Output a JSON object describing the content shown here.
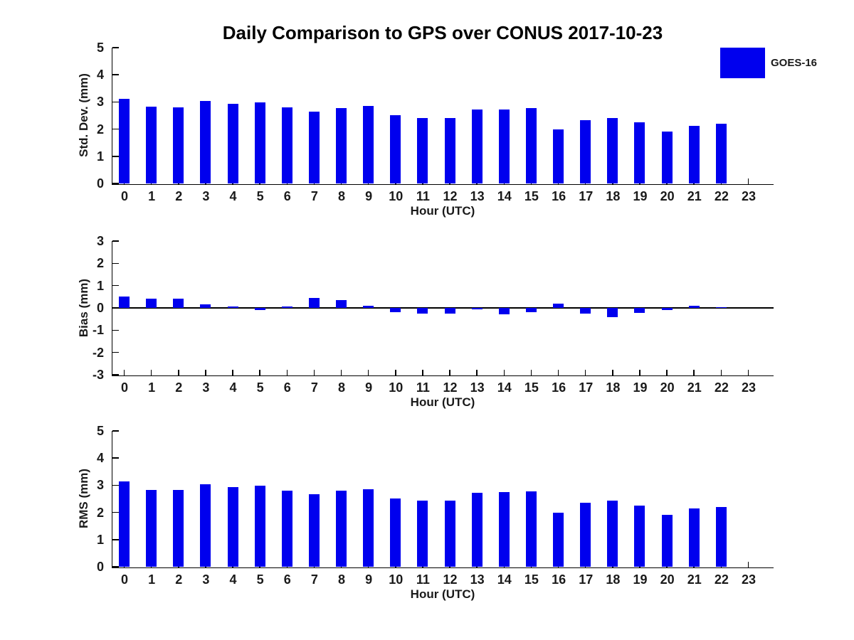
{
  "title": "Daily Comparison to GPS over CONUS 2017-10-23",
  "legend": {
    "label": "GOES-16",
    "position": "top-right"
  },
  "colors": {
    "bar": "#0000EE",
    "axis": "#000000",
    "text": "#1A1A1A"
  },
  "chart_data": [
    {
      "type": "bar",
      "panel": "std-dev",
      "series_name": "GOES-16",
      "ylabel": "Std. Dev. (mm)",
      "xlabel": "Hour (UTC)",
      "categories": [
        0,
        1,
        2,
        3,
        4,
        5,
        6,
        7,
        8,
        9,
        10,
        11,
        12,
        13,
        14,
        15,
        16,
        17,
        18,
        19,
        20,
        21,
        22,
        23
      ],
      "values": [
        3.11,
        2.83,
        2.8,
        3.03,
        2.93,
        2.98,
        2.8,
        2.64,
        2.77,
        2.85,
        2.51,
        2.42,
        2.42,
        2.73,
        2.73,
        2.77,
        1.98,
        2.34,
        2.4,
        2.24,
        1.91,
        2.13,
        2.19,
        null
      ],
      "ylim": [
        0,
        5
      ],
      "yticks": [
        0,
        1,
        2,
        3,
        4,
        5
      ],
      "grid": false
    },
    {
      "type": "bar",
      "panel": "bias",
      "series_name": "GOES-16",
      "ylabel": "Bias (mm)",
      "xlabel": "Hour (UTC)",
      "categories": [
        0,
        1,
        2,
        3,
        4,
        5,
        6,
        7,
        8,
        9,
        10,
        11,
        12,
        13,
        14,
        15,
        16,
        17,
        18,
        19,
        20,
        21,
        22,
        23
      ],
      "values": [
        0.51,
        0.43,
        0.4,
        0.17,
        0.06,
        -0.11,
        0.05,
        0.46,
        0.36,
        0.11,
        -0.2,
        -0.26,
        -0.25,
        -0.07,
        -0.29,
        -0.18,
        0.19,
        -0.24,
        -0.43,
        -0.21,
        -0.08,
        0.11,
        0.04,
        null
      ],
      "ylim": [
        -3,
        3
      ],
      "yticks": [
        -3,
        -2,
        -1,
        0,
        1,
        2,
        3
      ],
      "grid": false
    },
    {
      "type": "bar",
      "panel": "rms",
      "series_name": "GOES-16",
      "ylabel": "RMS (mm)",
      "xlabel": "Hour (UTC)",
      "categories": [
        0,
        1,
        2,
        3,
        4,
        5,
        6,
        7,
        8,
        9,
        10,
        11,
        12,
        13,
        14,
        15,
        16,
        17,
        18,
        19,
        20,
        21,
        22,
        23
      ],
      "values": [
        3.15,
        2.84,
        2.82,
        3.03,
        2.93,
        2.98,
        2.8,
        2.68,
        2.79,
        2.86,
        2.52,
        2.44,
        2.43,
        2.73,
        2.75,
        2.78,
        1.99,
        2.35,
        2.44,
        2.25,
        1.92,
        2.14,
        2.2,
        null
      ],
      "ylim": [
        0,
        5
      ],
      "yticks": [
        0,
        1,
        2,
        3,
        4,
        5
      ],
      "grid": false
    }
  ]
}
